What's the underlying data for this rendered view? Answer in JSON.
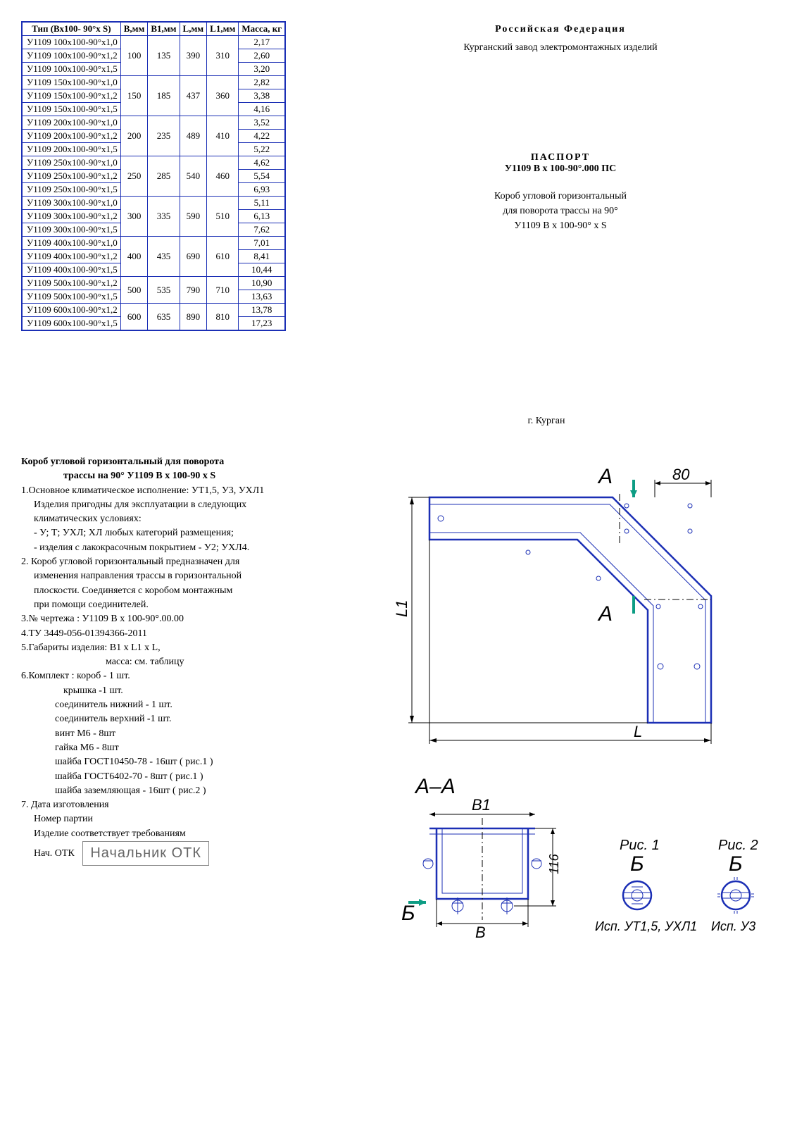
{
  "header": {
    "federation": "Российская Федерация",
    "factory": "Курганский завод электромонтажных изделий",
    "passport_label": "ПАСПОРТ",
    "passport_code": "У1109 В х 100-90°.000 ПС",
    "desc_line1": "Короб угловой горизонтальный",
    "desc_line2": "для поворота трассы на 90°",
    "desc_line3": "У1109 В х 100-90° х S",
    "city": "г. Курган"
  },
  "table": {
    "columns": [
      "Тип (Вх100- 90°х S)",
      "В,мм",
      "В1,мм",
      "L,мм",
      "L1,мм",
      "Масса, кг"
    ],
    "groups": [
      {
        "B": "100",
        "B1": "135",
        "L": "390",
        "L1": "310",
        "rows": [
          {
            "type": "У1109 100х100-90°х1,0",
            "mass": "2,17"
          },
          {
            "type": "У1109 100х100-90°х1,2",
            "mass": "2,60"
          },
          {
            "type": "У1109 100х100-90°х1,5",
            "mass": "3,20"
          }
        ]
      },
      {
        "B": "150",
        "B1": "185",
        "L": "437",
        "L1": "360",
        "rows": [
          {
            "type": "У1109 150х100-90°х1,0",
            "mass": "2,82"
          },
          {
            "type": "У1109 150х100-90°х1,2",
            "mass": "3,38"
          },
          {
            "type": "У1109 150х100-90°х1,5",
            "mass": "4,16"
          }
        ]
      },
      {
        "B": "200",
        "B1": "235",
        "L": "489",
        "L1": "410",
        "rows": [
          {
            "type": "У1109 200х100-90°х1,0",
            "mass": "3,52"
          },
          {
            "type": "У1109 200х100-90°х1,2",
            "mass": "4,22"
          },
          {
            "type": "У1109 200х100-90°х1,5",
            "mass": "5,22"
          }
        ]
      },
      {
        "B": "250",
        "B1": "285",
        "L": "540",
        "L1": "460",
        "rows": [
          {
            "type": "У1109 250х100-90°х1,0",
            "mass": "4,62"
          },
          {
            "type": "У1109 250х100-90°х1,2",
            "mass": "5,54"
          },
          {
            "type": "У1109 250х100-90°х1,5",
            "mass": "6,93"
          }
        ]
      },
      {
        "B": "300",
        "B1": "335",
        "L": "590",
        "L1": "510",
        "rows": [
          {
            "type": "У1109 300х100-90°х1,0",
            "mass": "5,11"
          },
          {
            "type": "У1109 300х100-90°х1,2",
            "mass": "6,13"
          },
          {
            "type": "У1109 300х100-90°х1,5",
            "mass": "7,62"
          }
        ]
      },
      {
        "B": "400",
        "B1": "435",
        "L": "690",
        "L1": "610",
        "rows": [
          {
            "type": "У1109 400х100-90°х1,0",
            "mass": "7,01"
          },
          {
            "type": "У1109 400х100-90°х1,2",
            "mass": "8,41"
          },
          {
            "type": "У1109 400х100-90°х1,5",
            "mass": "10,44"
          }
        ]
      },
      {
        "B": "500",
        "B1": "535",
        "L": "790",
        "L1": "710",
        "rows": [
          {
            "type": "У1109 500х100-90°х1,2",
            "mass": "10,90"
          },
          {
            "type": "У1109 500х100-90°х1,5",
            "mass": "13,63"
          }
        ]
      },
      {
        "B": "600",
        "B1": "635",
        "L": "890",
        "L1": "810",
        "rows": [
          {
            "type": "У1109 600х100-90°х1,2",
            "mass": "13,78"
          },
          {
            "type": "У1109 600х100-90°х1,5",
            "mass": "17,23"
          }
        ]
      }
    ]
  },
  "spec": {
    "title_line1": "Короб угловой горизонтальный для поворота",
    "title_line2": "трассы на 90°   У1109 В x 100-90 х S",
    "p1a": "1.Основное климатическое исполнение: УТ1,5, У3, УХЛ1",
    "p1b": "Изделия пригодны для эксплуатации в следующих",
    "p1c": "климатических условиях:",
    "p1d": "- У; Т; УХЛ; ХЛ любых категорий размещения;",
    "p1e": "- изделия с лакокрасочным покрытием - У2; УХЛ4.",
    "p2a": "2. Короб угловой горизонтальный  предназначен для",
    "p2b": "изменения направления трассы в горизонтальной",
    "p2c": "плоскости. Соединяется с коробом монтажным",
    "p2d": "при помощи соединителей.",
    "p3": "3.№ чертежа : У1109 В х 100-90°.00.00",
    "p4": "4.ТУ 3449-056-01394366-2011",
    "p5a": "5.Габариты изделия: В1 х L1 х L,",
    "p5b": "масса: см. таблицу",
    "p6a": "6.Комплект : короб           - 1 шт.",
    "p6b": "крышка                  -1 шт.",
    "p6c": "соединитель нижний - 1 шт.",
    "p6d": "соединитель верхний -1 шт.",
    "p6e": "винт М6              - 8шт",
    "p6f": "гайка М6            - 8шт",
    "p6g": "шайба ГОСТ10450-78  - 16шт ( рис.1 )",
    "p6h": "шайба ГОСТ6402-70   - 8шт ( рис.1 )",
    "p6i": "шайба заземляющая   - 16шт ( рис.2 )",
    "p7a": "7.  Дата изготовления",
    "p7b": "Номер партии",
    "p7c": "Изделие соответствует требованиям",
    "p7d": "Нач. ОТК",
    "stamp": "Начальник ОТК"
  },
  "drawing": {
    "section_A": "А",
    "section_AA": "А–А",
    "section_B_label": "Б",
    "dim_80": "80",
    "dim_L": "L",
    "dim_L1": "L1",
    "dim_B": "B",
    "dim_B1": "B1",
    "dim_116": "116",
    "ris1": "Рис. 1",
    "ris2": "Рис. 2",
    "isp1": "Исп. УТ1,5, УХЛ1",
    "isp2": "Исп. У3",
    "colors": {
      "outline": "#1b2fb5",
      "section": "#0d9d84",
      "fill": "#fff"
    }
  }
}
